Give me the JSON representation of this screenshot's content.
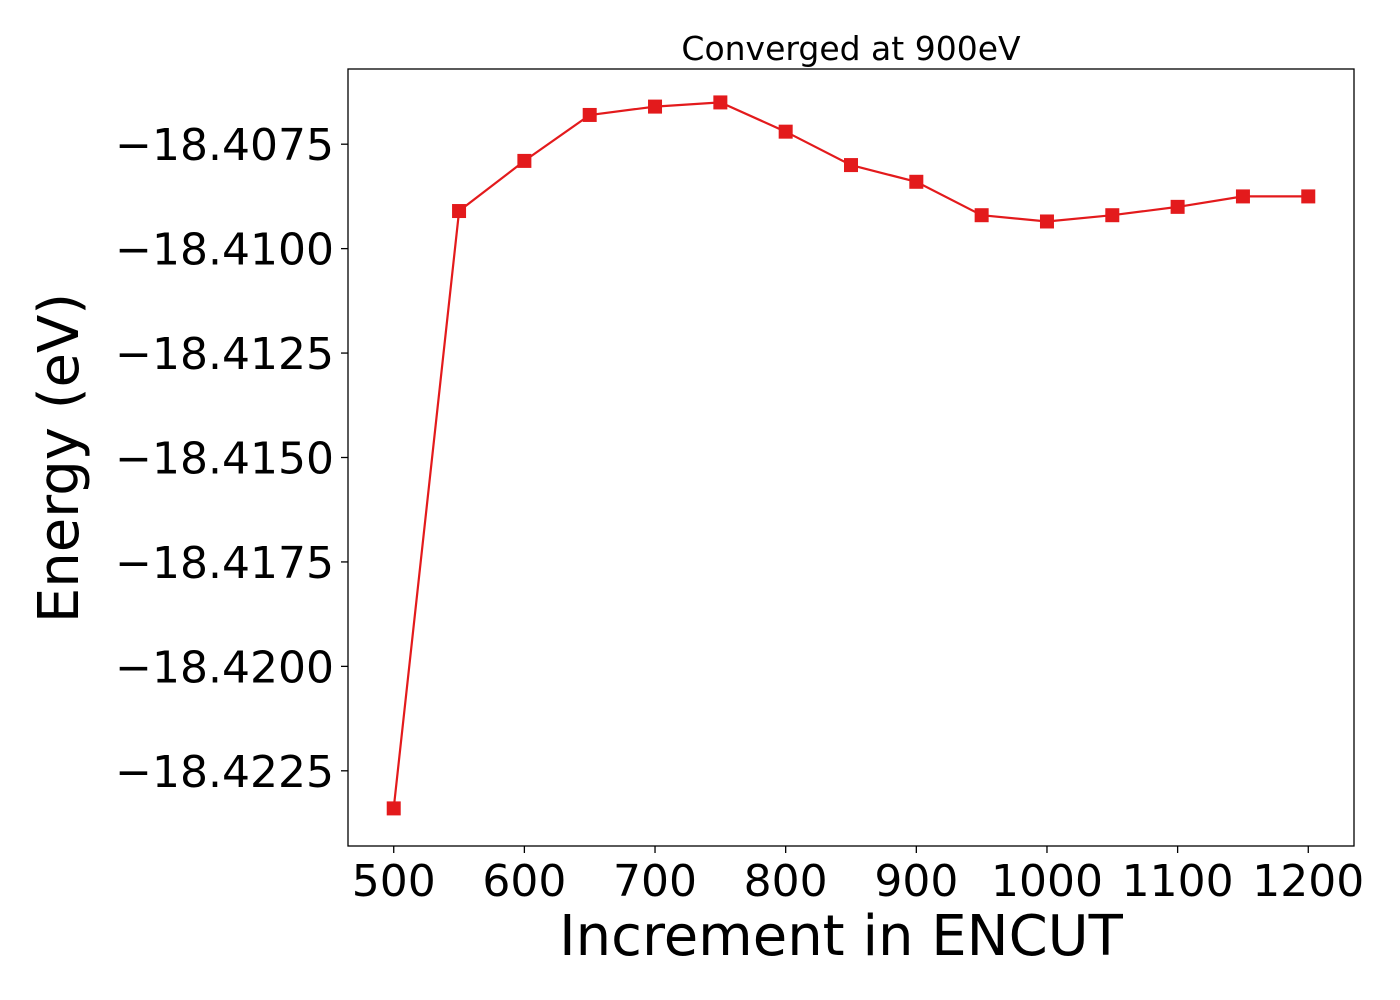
{
  "chart_data": {
    "type": "line",
    "title": "Converged at 900eV",
    "xlabel": "Increment in ENCUT",
    "ylabel": "Energy (eV)",
    "xlim": [
      465,
      1235
    ],
    "ylim": [
      -18.4243,
      -18.4057
    ],
    "xticks": [
      500,
      600,
      700,
      800,
      900,
      1000,
      1100,
      1200
    ],
    "yticks": [
      -18.4075,
      -18.41,
      -18.4125,
      -18.415,
      -18.4175,
      -18.42,
      -18.4225
    ],
    "ytick_labels": [
      "−18.4075",
      "−18.4100",
      "−18.4125",
      "−18.4150",
      "−18.4175",
      "−18.4200",
      "−18.4225"
    ],
    "grid": false,
    "series": [
      {
        "color": "#e31a1c",
        "marker": "square",
        "x": [
          500,
          550,
          600,
          650,
          700,
          750,
          800,
          850,
          900,
          950,
          1000,
          1050,
          1100,
          1150,
          1200
        ],
        "y": [
          -18.4234,
          -18.4091,
          -18.4079,
          -18.4068,
          -18.4066,
          -18.4065,
          -18.4072,
          -18.408,
          -18.4084,
          -18.4092,
          -18.40935,
          -18.4092,
          -18.409,
          -18.40875,
          -18.40875
        ]
      }
    ]
  }
}
